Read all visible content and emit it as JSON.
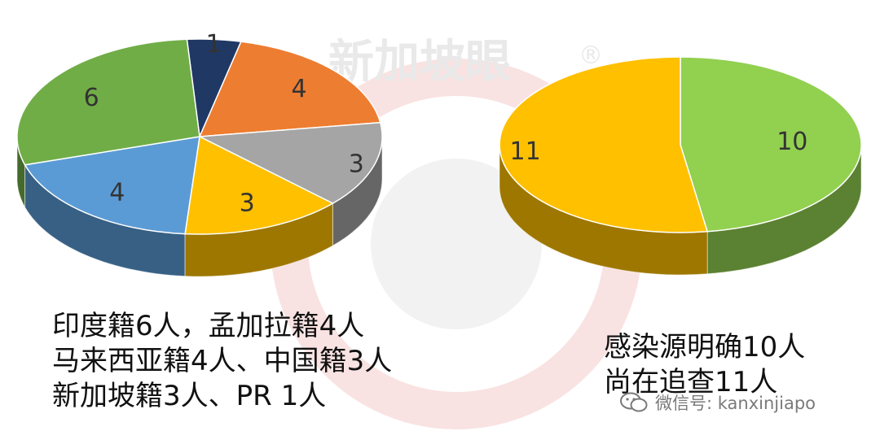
{
  "watermark": {
    "brand": "新加坡眼",
    "mark": "®"
  },
  "chart_data": [
    {
      "type": "pie",
      "style": "3d",
      "values": [
        1,
        4,
        3,
        3,
        4,
        6
      ],
      "colors": [
        "#203864",
        "#ED7D31",
        "#A5A5A5",
        "#FFC000",
        "#5B9BD5",
        "#70AD47"
      ],
      "data_labels": [
        "1",
        "4",
        "3",
        "3",
        "4",
        "6"
      ]
    },
    {
      "type": "pie",
      "style": "3d",
      "values": [
        10,
        11
      ],
      "colors": [
        "#92D050",
        "#FFC000"
      ],
      "data_labels": [
        "10",
        "11"
      ]
    }
  ],
  "captions": {
    "left": [
      "印度籍6人，孟加拉籍4人",
      "马来西亚籍4人、中国籍3人",
      "新加坡籍3人、PR 1人"
    ],
    "right": [
      "感染源明确10人",
      "尚在追查11人"
    ]
  },
  "footer": {
    "wechat": "微信号: kanxinjiapo"
  }
}
